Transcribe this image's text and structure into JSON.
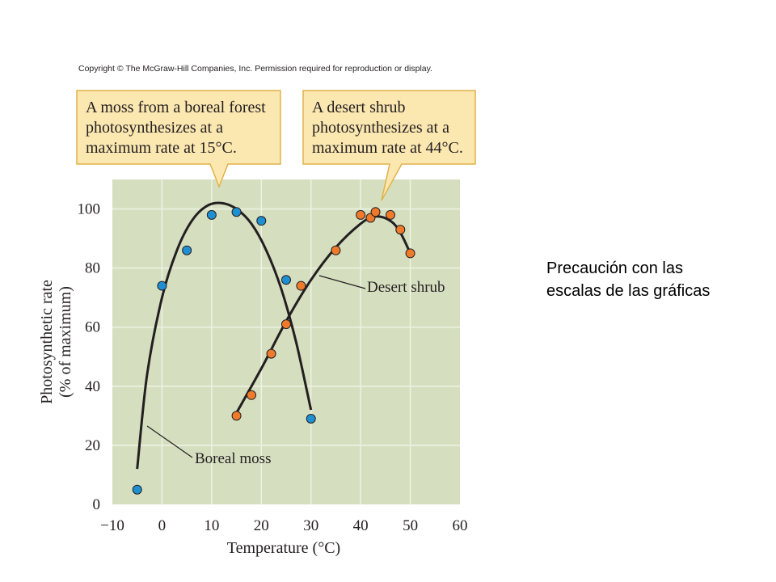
{
  "copyright": "Copyright © The McGraw-Hill Companies, Inc. Permission required for reproduction or display.",
  "note": {
    "line1": "Precaución con las",
    "line2": "escalas de las gráficas"
  },
  "chart_data": {
    "type": "scatter",
    "xlabel": "Temperature (°C)",
    "ylabel_line1": "Photosynthetic rate",
    "ylabel_line2": "(% of maximum)",
    "xlim": [
      -10,
      60
    ],
    "ylim": [
      0,
      110
    ],
    "xticks": [
      -10,
      0,
      10,
      20,
      30,
      40,
      50,
      60
    ],
    "yticks": [
      0,
      20,
      40,
      60,
      80,
      100
    ],
    "grid": "horizontal and vertical gridlines",
    "colors": {
      "background": "#d5dfc0",
      "grid": "#eef2e2",
      "boreal_moss": "#1f8fd3",
      "desert_shrub": "#f07a2c",
      "callout_fill": "#fbe7b0",
      "callout_border": "#e1b24a",
      "curve": "#231f20"
    },
    "series": [
      {
        "name": "Boreal moss",
        "label": "Boreal moss",
        "points": [
          [
            -5,
            5
          ],
          [
            0,
            74
          ],
          [
            5,
            86
          ],
          [
            10,
            98
          ],
          [
            15,
            99
          ],
          [
            20,
            96
          ],
          [
            25,
            76
          ],
          [
            30,
            29
          ]
        ],
        "curve": [
          [
            -5,
            12
          ],
          [
            -3,
            44
          ],
          [
            0,
            70
          ],
          [
            3,
            86
          ],
          [
            6,
            96
          ],
          [
            9,
            101
          ],
          [
            12,
            102
          ],
          [
            15,
            100
          ],
          [
            18,
            95
          ],
          [
            21,
            86
          ],
          [
            24,
            73
          ],
          [
            27,
            55
          ],
          [
            30,
            32
          ]
        ]
      },
      {
        "name": "Desert shrub",
        "label": "Desert shrub",
        "points": [
          [
            15,
            30
          ],
          [
            18,
            37
          ],
          [
            22,
            51
          ],
          [
            25,
            61
          ],
          [
            28,
            74
          ],
          [
            35,
            86
          ],
          [
            40,
            98
          ],
          [
            42,
            97
          ],
          [
            43,
            99
          ],
          [
            46,
            98
          ],
          [
            48,
            93
          ],
          [
            50,
            85
          ]
        ],
        "curve": [
          [
            15,
            31
          ],
          [
            20,
            46
          ],
          [
            25,
            62
          ],
          [
            30,
            76
          ],
          [
            35,
            87
          ],
          [
            40,
            95
          ],
          [
            43,
            97.5
          ],
          [
            46,
            96
          ],
          [
            48,
            92
          ],
          [
            50,
            85
          ]
        ]
      }
    ],
    "callouts": [
      {
        "lines": [
          "A moss from a boreal forest",
          "photosynthesizes at a",
          "maximum rate at 15°C."
        ]
      },
      {
        "lines": [
          "A desert shrub",
          "photosynthesizes at a",
          "maximum rate at 44°C."
        ]
      }
    ]
  }
}
